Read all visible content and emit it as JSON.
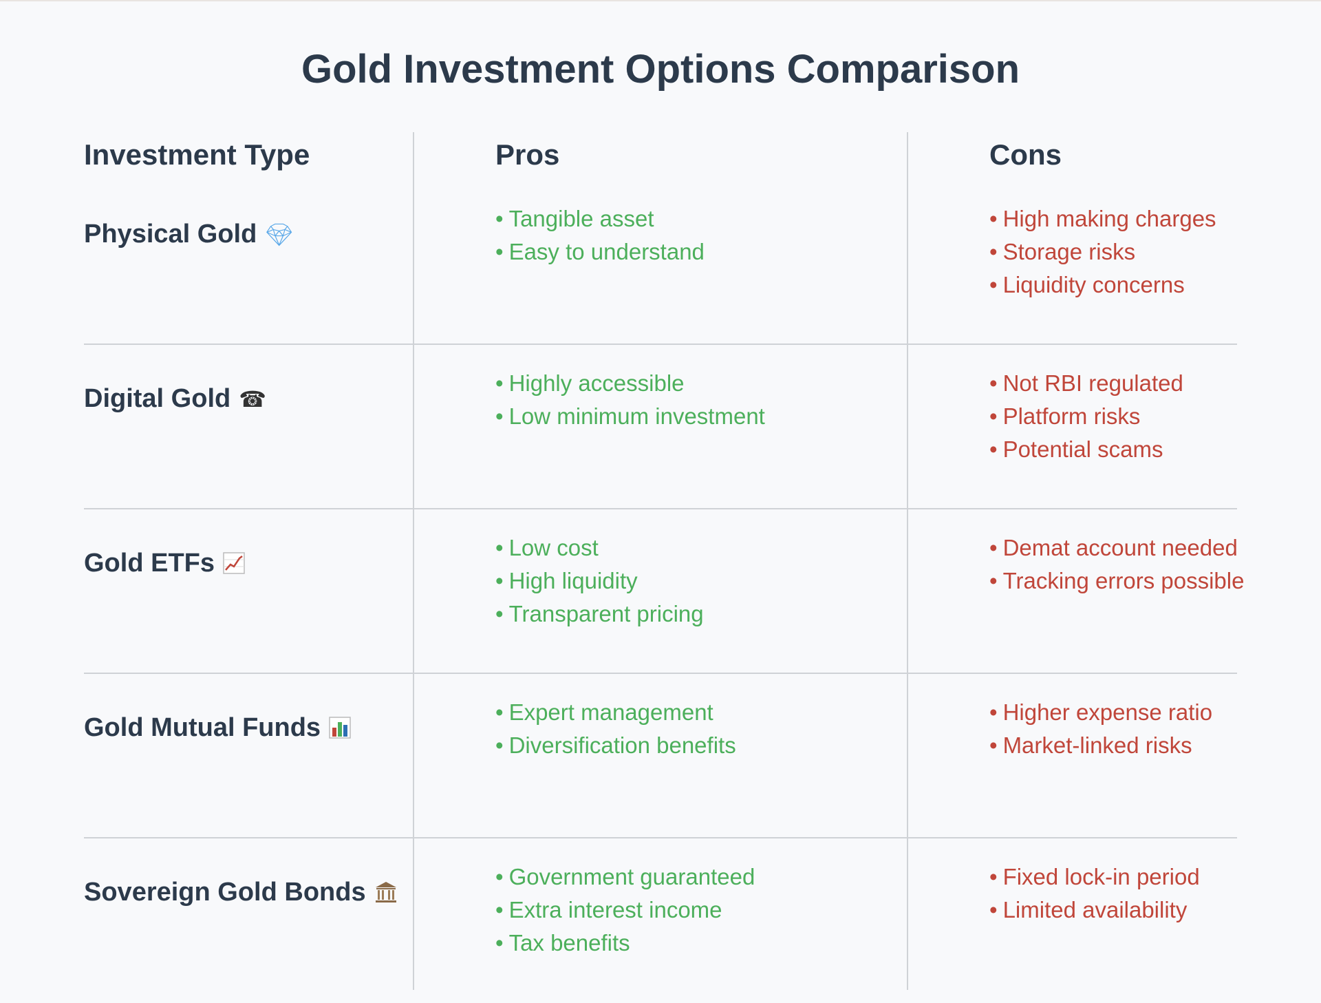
{
  "title": "Gold Investment Options Comparison",
  "columns": {
    "type": "Investment Type",
    "pros": "Pros",
    "cons": "Cons"
  },
  "rows": [
    {
      "type": "Physical Gold",
      "icon": "gem-icon",
      "pros": [
        "Tangible asset",
        "Easy to understand"
      ],
      "cons": [
        "High making charges",
        "Storage risks",
        "Liquidity concerns"
      ]
    },
    {
      "type": "Digital Gold",
      "icon": "mobile-phone-icon",
      "pros": [
        "Highly accessible",
        "Low minimum investment"
      ],
      "cons": [
        "Not RBI regulated",
        "Platform risks",
        "Potential scams"
      ]
    },
    {
      "type": "Gold ETFs",
      "icon": "chart-increasing-icon",
      "pros": [
        "Low cost",
        "High liquidity",
        "Transparent pricing"
      ],
      "cons": [
        "Demat account needed",
        "Tracking errors possible"
      ]
    },
    {
      "type": "Gold Mutual Funds",
      "icon": "bar-chart-icon",
      "pros": [
        "Expert management",
        "Diversification benefits"
      ],
      "cons": [
        "Higher expense ratio",
        "Market-linked risks"
      ]
    },
    {
      "type": "Sovereign Gold Bonds",
      "icon": "classical-building-icon",
      "pros": [
        "Government guaranteed",
        "Extra interest income",
        "Tax benefits"
      ],
      "cons": [
        "Fixed lock-in period",
        "Limited availability"
      ]
    }
  ]
}
